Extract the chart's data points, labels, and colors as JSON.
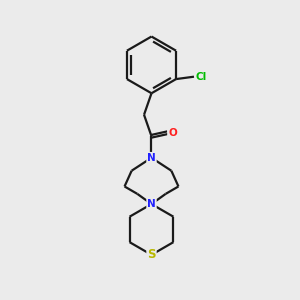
{
  "background_color": "#ebebeb",
  "bond_color": "#1a1a1a",
  "atom_colors": {
    "Cl": "#00bb00",
    "O": "#ff2020",
    "N": "#2020ff",
    "S": "#b8b800"
  },
  "figsize": [
    3.0,
    3.0
  ],
  "dpi": 100,
  "bond_lw": 1.6,
  "double_sep": 0.09
}
